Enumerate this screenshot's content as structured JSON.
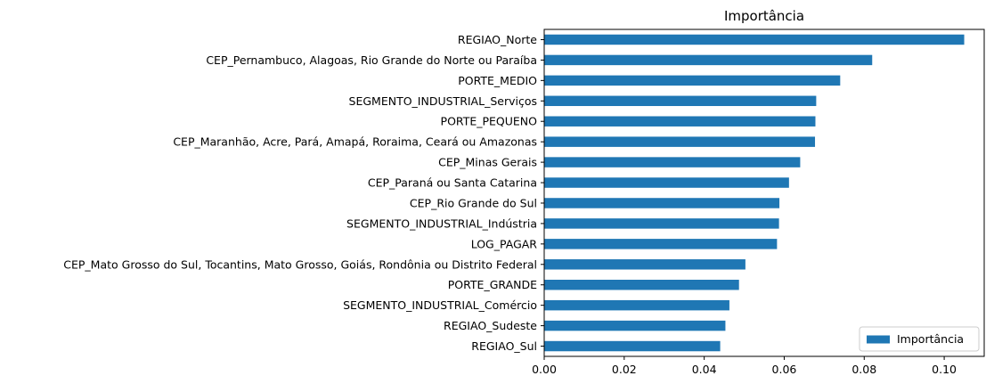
{
  "chart_data": {
    "type": "bar",
    "orientation": "horizontal",
    "title": "Importância",
    "xlabel": "",
    "ylabel": "",
    "xlim": [
      0,
      0.11
    ],
    "xticks": [
      0.0,
      0.02,
      0.04,
      0.06,
      0.08,
      0.1
    ],
    "xtick_labels": [
      "0.00",
      "0.02",
      "0.04",
      "0.06",
      "0.08",
      "0.10"
    ],
    "grid": false,
    "legend_position": "bottom-right",
    "bar_color": "#1f77b4",
    "categories": [
      "REGIAO_Norte",
      "CEP_Pernambuco, Alagoas, Rio Grande do Norte ou Paraíba",
      "PORTE_MEDIO",
      "SEGMENTO_INDUSTRIAL_Serviços",
      "PORTE_PEQUENO",
      "CEP_Maranhão, Acre, Pará, Amapá, Roraima, Ceará ou Amazonas",
      "CEP_Minas Gerais",
      "CEP_Paraná ou Santa Catarina",
      "CEP_Rio Grande do Sul",
      "SEGMENTO_INDUSTRIAL_Indústria",
      "LOG_PAGAR",
      "CEP_Mato Grosso do Sul, Tocantins, Mato Grosso, Goiás, Rondônia ou Distrito Federal",
      "PORTE_GRANDE",
      "SEGMENTO_INDUSTRIAL_Comércio",
      "REGIAO_Sudeste",
      "REGIAO_Sul"
    ],
    "series": [
      {
        "name": "Importância",
        "values": [
          0.105,
          0.082,
          0.074,
          0.068,
          0.0678,
          0.0677,
          0.064,
          0.0612,
          0.0588,
          0.0587,
          0.0582,
          0.0503,
          0.0487,
          0.0463,
          0.0453,
          0.044
        ]
      }
    ]
  }
}
